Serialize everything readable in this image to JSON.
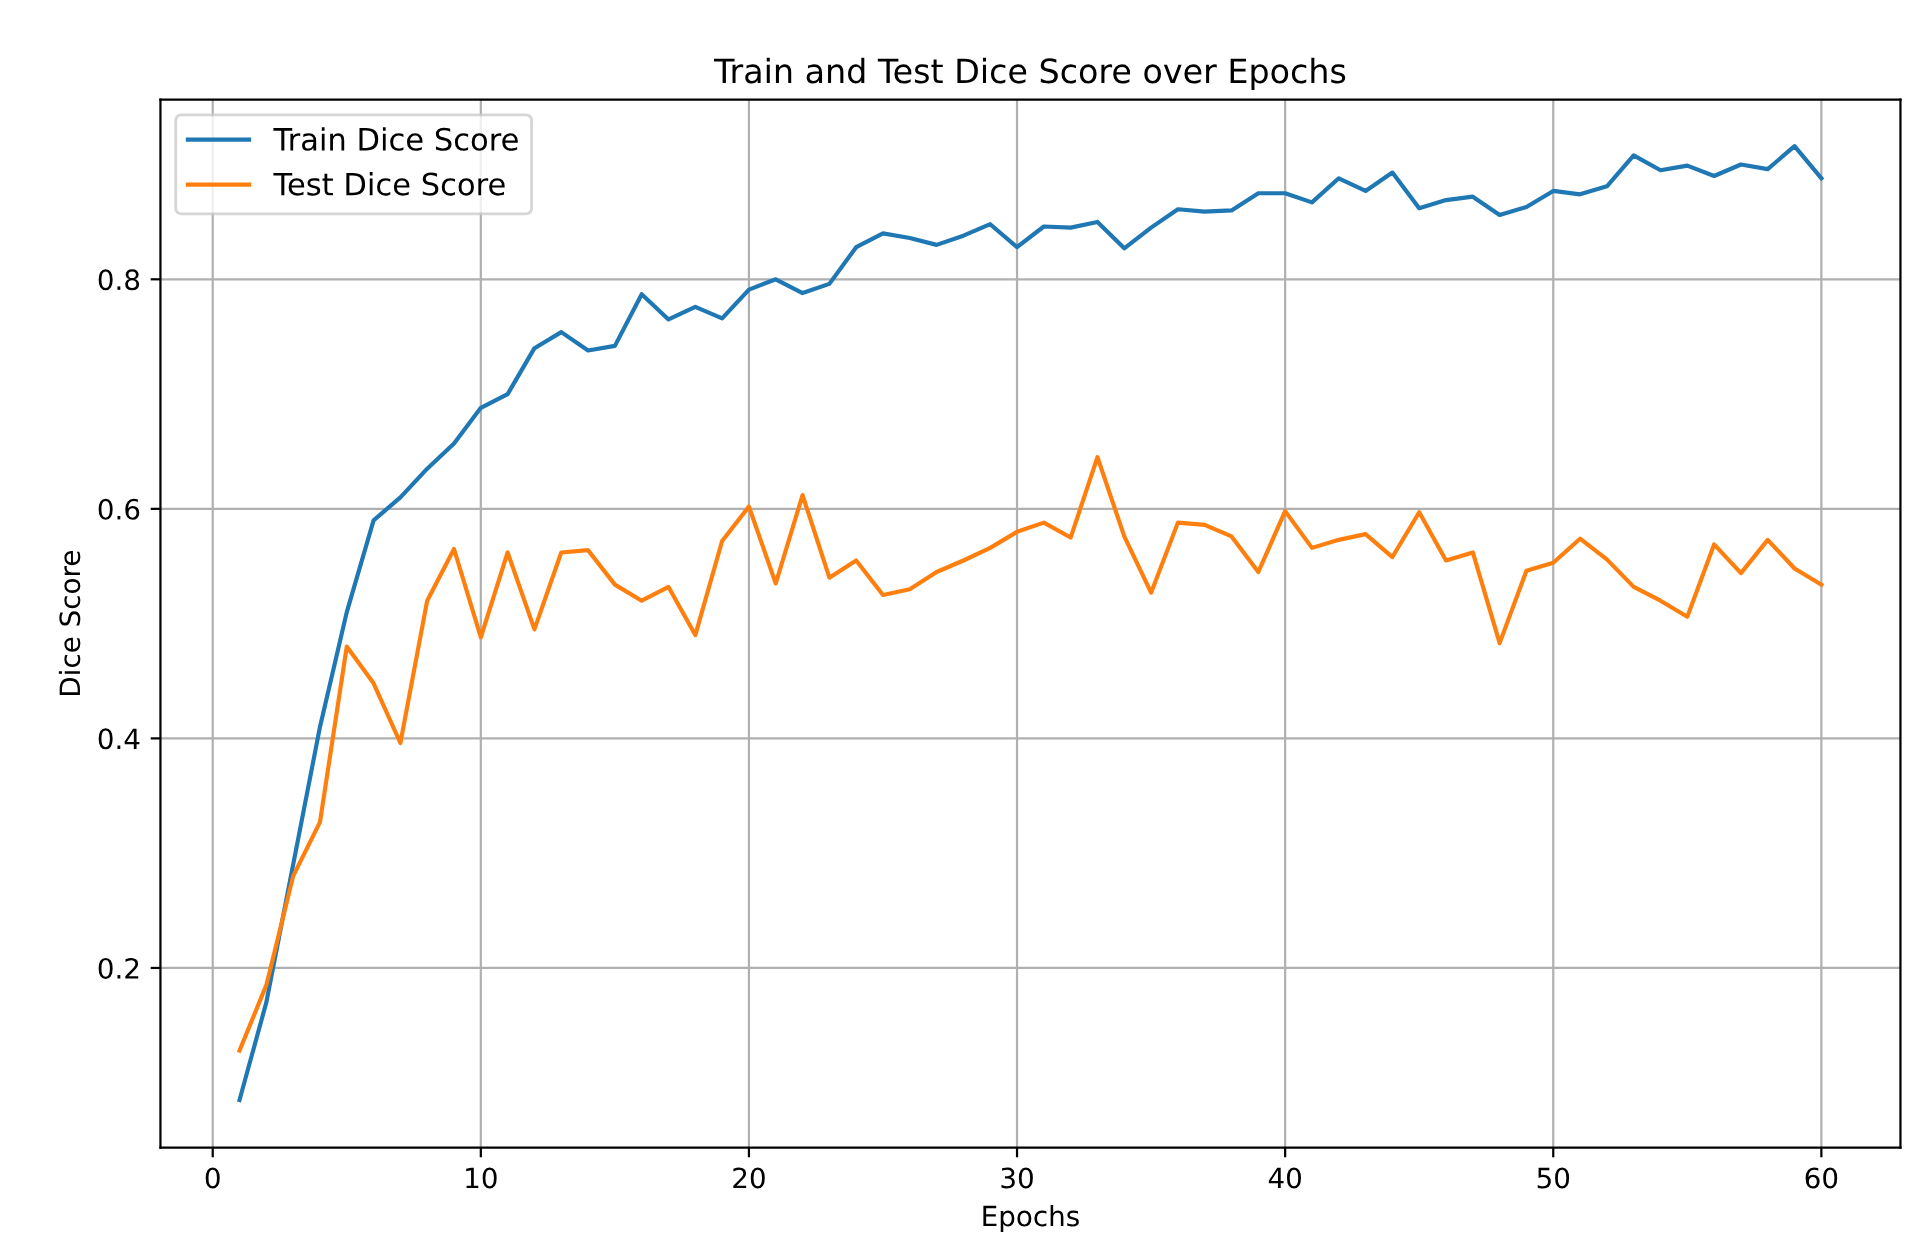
{
  "chart_data": {
    "type": "line",
    "title": "Train and Test Dice Score over Epochs",
    "xlabel": "Epochs",
    "ylabel": "Dice Score",
    "x": [
      1,
      2,
      3,
      4,
      5,
      6,
      7,
      8,
      9,
      10,
      11,
      12,
      13,
      14,
      15,
      16,
      17,
      18,
      19,
      20,
      21,
      22,
      23,
      24,
      25,
      26,
      27,
      28,
      29,
      30,
      31,
      32,
      33,
      34,
      35,
      36,
      37,
      38,
      39,
      40,
      41,
      42,
      43,
      44,
      45,
      46,
      47,
      48,
      49,
      50,
      51,
      52,
      53,
      54,
      55,
      56,
      57,
      58,
      59,
      60
    ],
    "series": [
      {
        "name": "Train Dice Score",
        "color": "#1f77b4",
        "values": [
          0.085,
          0.17,
          0.29,
          0.41,
          0.51,
          0.59,
          0.61,
          0.635,
          0.657,
          0.688,
          0.7,
          0.74,
          0.754,
          0.738,
          0.742,
          0.787,
          0.765,
          0.776,
          0.766,
          0.791,
          0.8,
          0.788,
          0.796,
          0.828,
          0.84,
          0.836,
          0.83,
          0.838,
          0.848,
          0.828,
          0.846,
          0.845,
          0.85,
          0.827,
          0.845,
          0.861,
          0.859,
          0.86,
          0.875,
          0.875,
          0.867,
          0.888,
          0.877,
          0.893,
          0.862,
          0.869,
          0.872,
          0.856,
          0.863,
          0.877,
          0.874,
          0.881,
          0.908,
          0.895,
          0.899,
          0.89,
          0.9,
          0.896,
          0.916,
          0.888
        ]
      },
      {
        "name": "Test Dice Score",
        "color": "#ff7f0e",
        "values": [
          0.128,
          0.185,
          0.28,
          0.327,
          0.48,
          0.448,
          0.396,
          0.52,
          0.565,
          0.488,
          0.562,
          0.495,
          0.562,
          0.564,
          0.534,
          0.52,
          0.532,
          0.49,
          0.572,
          0.602,
          0.535,
          0.612,
          0.54,
          0.555,
          0.525,
          0.53,
          0.545,
          0.555,
          0.566,
          0.58,
          0.588,
          0.575,
          0.645,
          0.576,
          0.527,
          0.588,
          0.586,
          0.576,
          0.545,
          0.598,
          0.566,
          0.573,
          0.578,
          0.558,
          0.597,
          0.555,
          0.562,
          0.483,
          0.546,
          0.553,
          0.574,
          0.556,
          0.532,
          0.52,
          0.506,
          0.569,
          0.544,
          0.573,
          0.548,
          0.534
        ]
      }
    ],
    "xlim": [
      -1.95,
      62.95
    ],
    "ylim": [
      0.0435,
      0.9565
    ],
    "xticks": [
      0,
      10,
      20,
      30,
      40,
      50,
      60
    ],
    "yticks": [
      {
        "value": 0.2,
        "label": "0.2"
      },
      {
        "value": 0.4,
        "label": "0.4"
      },
      {
        "value": 0.6,
        "label": "0.6"
      },
      {
        "value": 0.8,
        "label": "0.8"
      }
    ],
    "grid": true,
    "legend": "top left",
    "marker": "none",
    "line_style": "solid"
  }
}
